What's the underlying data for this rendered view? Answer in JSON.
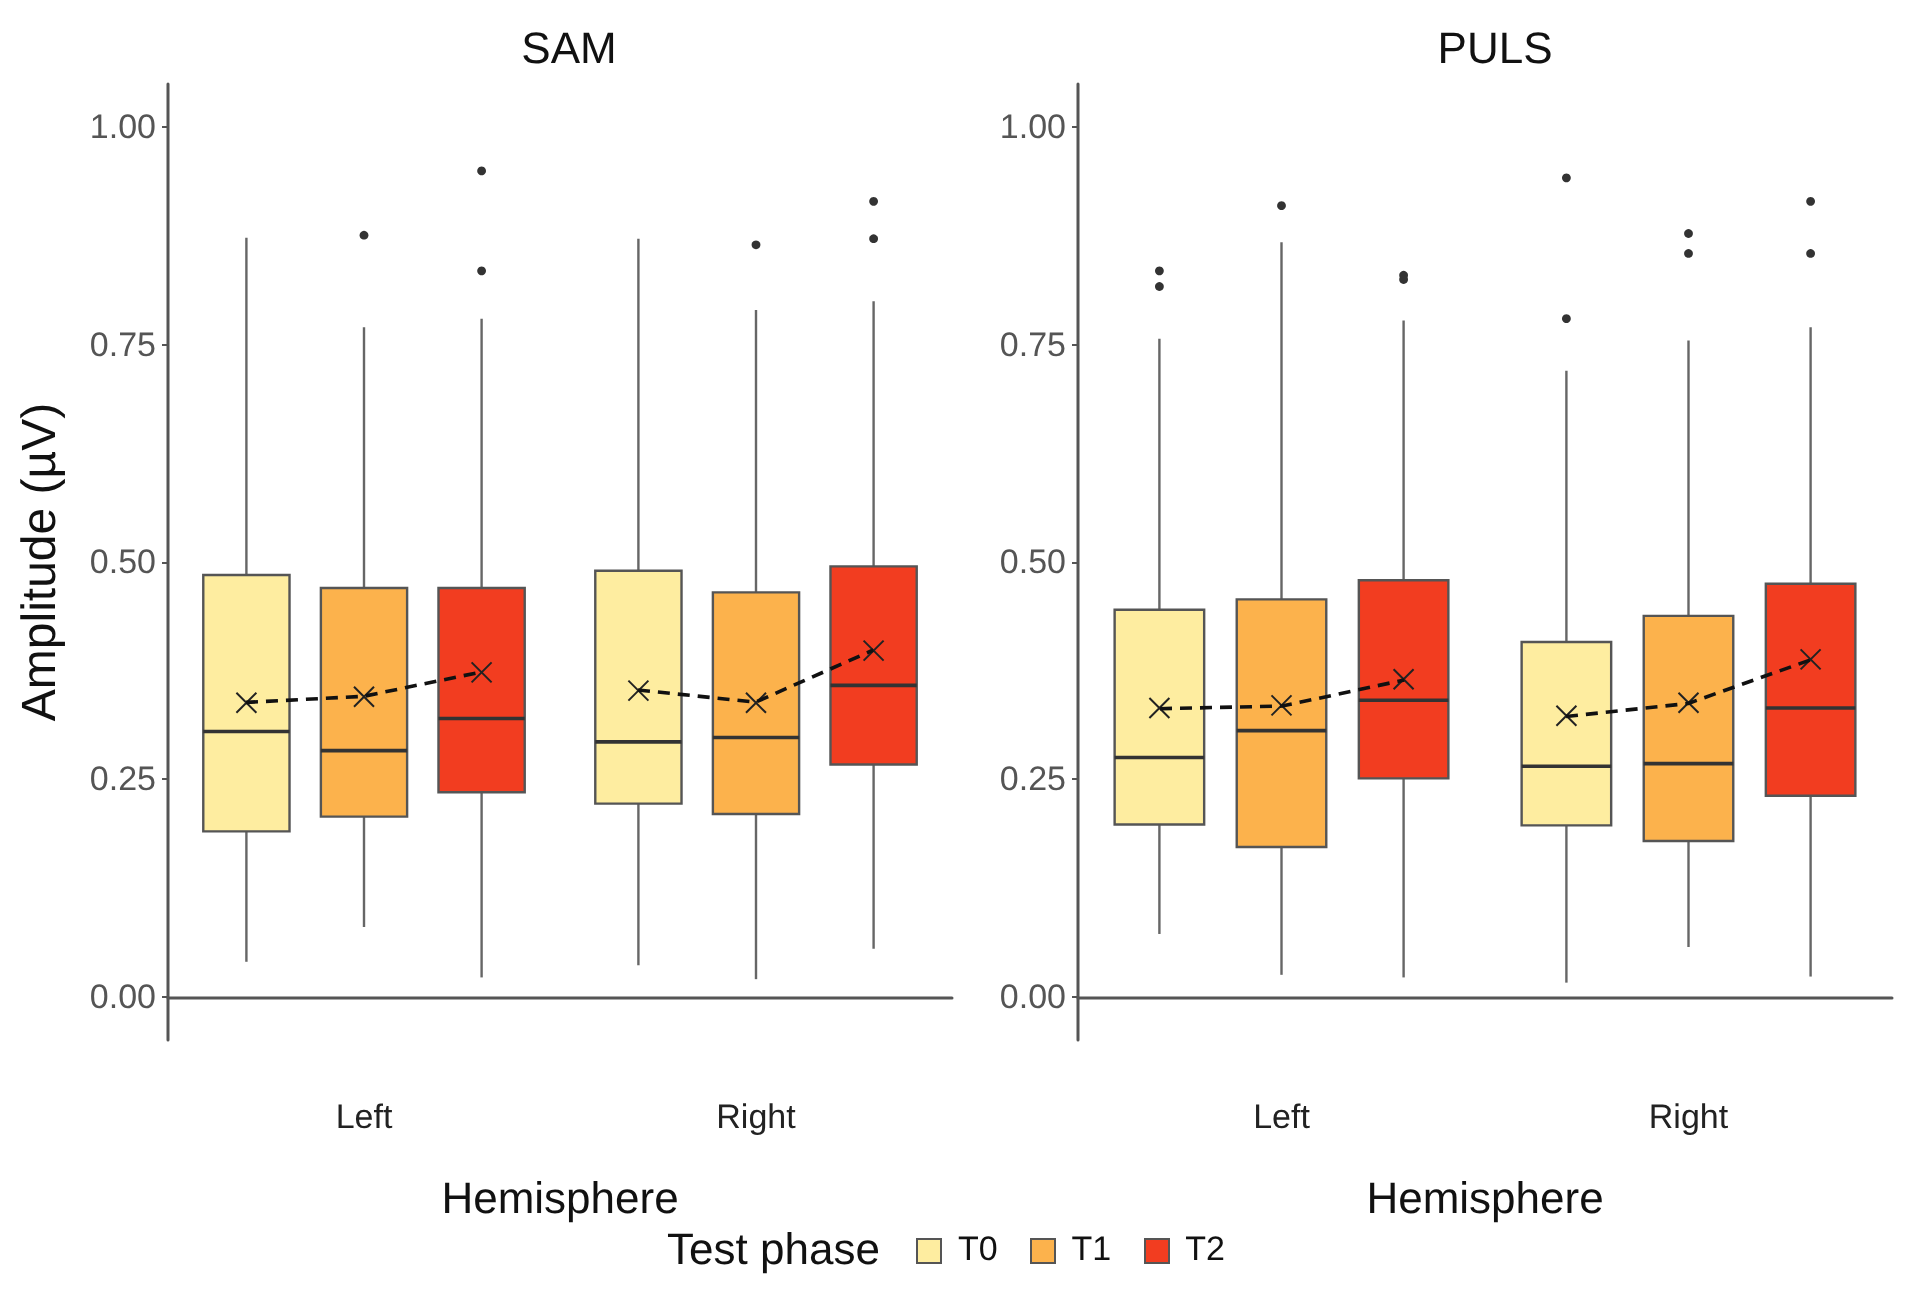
{
  "chart_data": [
    {
      "type": "box",
      "title": "SAM",
      "xlabel": "Hemisphere",
      "ylabel": "Amplitude (µV)",
      "legend_title": "Test phase",
      "legend": "bottom",
      "marker": "cross",
      "line_style": "dashed",
      "categories": [
        "Left",
        "Right"
      ],
      "ylim": [
        -0.05,
        1.05
      ],
      "yticks": [
        {
          "value": 0,
          "label": "0.00"
        },
        {
          "value": 0.25,
          "label": "0.25"
        },
        {
          "value": 0.5,
          "label": "0.50"
        },
        {
          "value": 0.75,
          "label": "0.75"
        },
        {
          "value": 1,
          "label": "1.00"
        }
      ],
      "series": [
        {
          "name": "T0",
          "color": "#feeda0",
          "boxes": [
            {
              "low": 0.04,
              "q1": 0.19,
              "median": 0.305,
              "q3": 0.485,
              "high": 0.873,
              "mean": 0.338
            },
            {
              "low": 0.036,
              "q1": 0.222,
              "median": 0.293,
              "q3": 0.49,
              "high": 0.872,
              "mean": 0.352
            }
          ]
        },
        {
          "name": "T1",
          "color": "#fcb24c",
          "boxes": [
            {
              "low": 0.08,
              "q1": 0.207,
              "median": 0.283,
              "q3": 0.47,
              "high": 0.77,
              "mean": 0.345,
              "outliers": [
                0.876
              ]
            },
            {
              "low": 0.02,
              "q1": 0.21,
              "median": 0.298,
              "q3": 0.465,
              "high": 0.79,
              "mean": 0.338,
              "outliers": [
                0.865
              ]
            }
          ]
        },
        {
          "name": "T2",
          "color": "#f23d20",
          "boxes": [
            {
              "low": 0.022,
              "q1": 0.235,
              "median": 0.32,
              "q3": 0.47,
              "high": 0.78,
              "mean": 0.373,
              "outliers": [
                0.95,
                0.835
              ]
            },
            {
              "low": 0.055,
              "q1": 0.267,
              "median": 0.358,
              "q3": 0.495,
              "high": 0.8,
              "mean": 0.398,
              "outliers": [
                0.915,
                0.872
              ]
            }
          ]
        }
      ]
    },
    {
      "type": "box",
      "title": "PULS",
      "xlabel": "Hemisphere",
      "legend": "bottom",
      "marker": "cross",
      "line_style": "dashed",
      "categories": [
        "Left",
        "Right"
      ],
      "ylim": [
        -0.05,
        1.05
      ],
      "yticks": [
        {
          "value": 0,
          "label": "0.00"
        },
        {
          "value": 0.25,
          "label": "0.25"
        },
        {
          "value": 0.5,
          "label": "0.50"
        },
        {
          "value": 0.75,
          "label": "0.75"
        },
        {
          "value": 1,
          "label": "1.00"
        }
      ],
      "series": [
        {
          "name": "T0",
          "color": "#feeda0",
          "boxes": [
            {
              "low": 0.072,
              "q1": 0.198,
              "median": 0.275,
              "q3": 0.445,
              "high": 0.757,
              "mean": 0.332,
              "outliers": [
                0.835,
                0.817
              ]
            },
            {
              "low": 0.016,
              "q1": 0.197,
              "median": 0.265,
              "q3": 0.408,
              "high": 0.72,
              "mean": 0.323,
              "outliers": [
                0.942,
                0.78
              ]
            }
          ]
        },
        {
          "name": "T1",
          "color": "#fcb24c",
          "boxes": [
            {
              "low": 0.025,
              "q1": 0.172,
              "median": 0.306,
              "q3": 0.457,
              "high": 0.868,
              "mean": 0.335,
              "outliers": [
                0.91
              ]
            },
            {
              "low": 0.057,
              "q1": 0.179,
              "median": 0.268,
              "q3": 0.438,
              "high": 0.755,
              "mean": 0.338,
              "outliers": [
                0.878,
                0.855
              ]
            }
          ]
        },
        {
          "name": "T2",
          "color": "#f23d20",
          "boxes": [
            {
              "low": 0.022,
              "q1": 0.251,
              "median": 0.341,
              "q3": 0.479,
              "high": 0.778,
              "mean": 0.365,
              "outliers": [
                0.83,
                0.825
              ]
            },
            {
              "low": 0.023,
              "q1": 0.231,
              "median": 0.332,
              "q3": 0.475,
              "high": 0.77,
              "mean": 0.388,
              "outliers": [
                0.915,
                0.855
              ]
            }
          ]
        }
      ]
    }
  ]
}
